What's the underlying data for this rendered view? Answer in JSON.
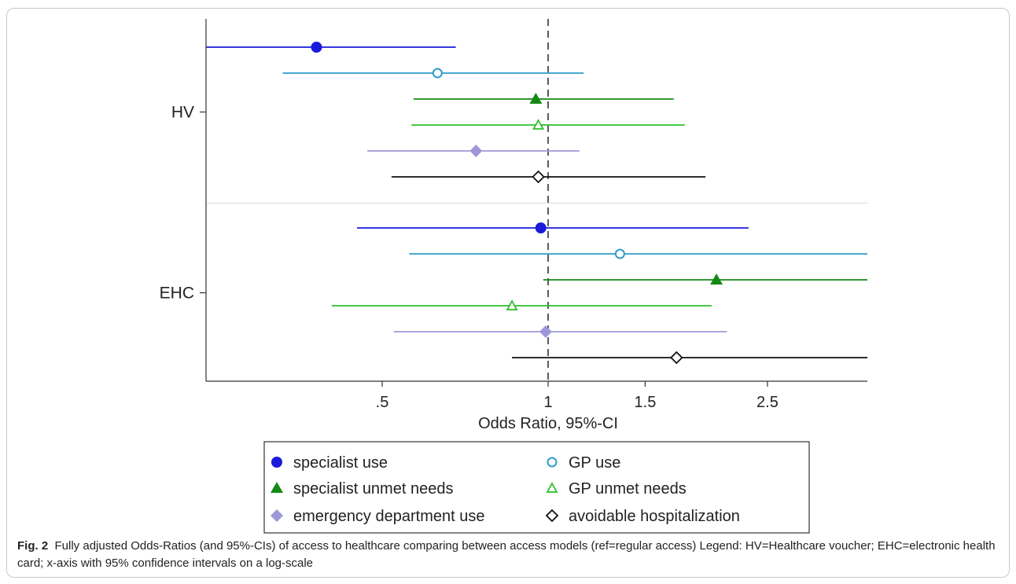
{
  "chart_data": {
    "type": "forest",
    "scale": "log",
    "xlabel": "Odds Ratio, 95%-CI",
    "x_ticks": [
      {
        "value": 0.5,
        "label": ".5"
      },
      {
        "value": 1,
        "label": "1"
      },
      {
        "value": 1.5,
        "label": "1.5"
      },
      {
        "value": 2.5,
        "label": "2.5"
      }
    ],
    "xlim": [
      0.23,
      4.0
    ],
    "reference_line": 1,
    "groups": [
      {
        "label": "HV",
        "rows": [
          {
            "series": "specialist use",
            "or": 0.38,
            "lo": 0.24,
            "hi": 0.68
          },
          {
            "series": "GP use",
            "or": 0.63,
            "lo": 0.33,
            "hi": 1.16
          },
          {
            "series": "specialist unmet needs",
            "or": 0.95,
            "lo": 0.57,
            "hi": 1.69
          },
          {
            "series": "GP unmet needs",
            "or": 0.96,
            "lo": 0.565,
            "hi": 1.77
          },
          {
            "series": "emergency department use",
            "or": 0.74,
            "lo": 0.47,
            "hi": 1.14
          },
          {
            "series": "avoidable hospitalization",
            "or": 0.96,
            "lo": 0.52,
            "hi": 1.93
          }
        ]
      },
      {
        "label": "EHC",
        "rows": [
          {
            "series": "specialist use",
            "or": 0.97,
            "lo": 0.45,
            "hi": 2.31
          },
          {
            "series": "GP use",
            "or": 1.35,
            "lo": 0.56,
            "hi": 4.08
          },
          {
            "series": "specialist unmet needs",
            "or": 2.02,
            "lo": 0.98,
            "hi": 4.65
          },
          {
            "series": "GP unmet needs",
            "or": 0.86,
            "lo": 0.405,
            "hi": 1.98
          },
          {
            "series": "emergency department use",
            "or": 0.99,
            "lo": 0.525,
            "hi": 2.11
          },
          {
            "series": "avoidable hospitalization",
            "or": 1.71,
            "lo": 0.86,
            "hi": 4.1
          }
        ]
      }
    ],
    "series": [
      {
        "name": "specialist use",
        "color": "#1a1adb",
        "marker": "circle-filled"
      },
      {
        "name": "GP use",
        "color": "#2f9dc9",
        "marker": "circle-open"
      },
      {
        "name": "specialist unmet needs",
        "color": "#148a14",
        "marker": "triangle-filled"
      },
      {
        "name": "GP unmet needs",
        "color": "#2cc02c",
        "marker": "triangle-open"
      },
      {
        "name": "emergency department use",
        "color": "#9f98d8",
        "marker": "diamond-filled"
      },
      {
        "name": "avoidable hospitalization",
        "color": "#111111",
        "marker": "diamond-open"
      }
    ],
    "legend": {
      "position": "bottom",
      "columns": 2
    }
  },
  "caption": {
    "label": "Fig. 2",
    "text": "Fully adjusted Odds-Ratios (and 95%-CIs) of access to healthcare comparing between access models (ref=regular access) Legend: HV=Healthcare voucher; EHC=electronic health card; x-axis with 95% confidence intervals on a log-scale"
  }
}
